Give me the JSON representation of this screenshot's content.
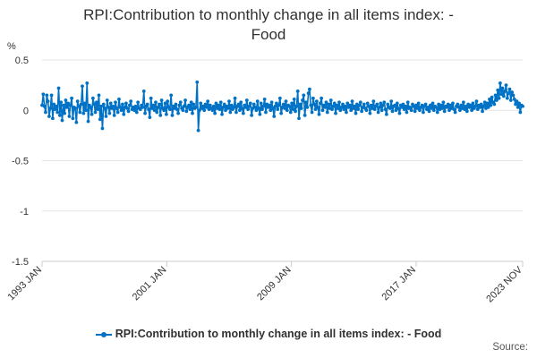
{
  "header": {
    "title_line1": "RPI:Contribution to monthly change in all items index: -",
    "title_line2": "Food"
  },
  "source_label": "Source:",
  "colors": {
    "series": "#0072c6",
    "grid": "#e5e5e5",
    "axis": "#cccccc",
    "text": "#323132"
  },
  "chart_data": {
    "type": "line",
    "title": "RPI:Contribution to monthly change in all items index: - Food",
    "unit_label": "%",
    "ylim": [
      -1.5,
      0.5
    ],
    "yticks": [
      0.5,
      0,
      -0.5,
      -1,
      -1.5
    ],
    "ytick_labels": [
      "0.5",
      "0",
      "-0.5",
      "-1",
      "-1.5"
    ],
    "xlim": [
      "1993 JAN",
      "2023 NOV"
    ],
    "xticks": [
      "1993 JAN",
      "2001 JAN",
      "2009 JAN",
      "2017 JAN",
      "2023 NOV"
    ],
    "grid": true,
    "legend_position": "bottom",
    "series": [
      {
        "name": "RPI:Contribution to monthly change in all items index: - Food",
        "x_start": "1993 JAN",
        "x_end": "2023 NOV",
        "values": [
          0.05,
          0.16,
          0.04,
          -0.02,
          0.15,
          0.09,
          -0.06,
          0.02,
          0.15,
          -0.08,
          0.06,
          0.01,
          0.04,
          -0.02,
          0.22,
          -0.05,
          0.08,
          -0.1,
          0.05,
          -0.03,
          0.1,
          0.03,
          0.07,
          -0.06,
          0.05,
          0.12,
          -0.08,
          0.03,
          0.02,
          -0.12,
          0.09,
          0.04,
          -0.02,
          0.06,
          0.24,
          -0.03,
          0.07,
          0.0,
          0.27,
          -0.11,
          0.05,
          0.03,
          -0.04,
          0.12,
          0.06,
          -0.02,
          0.08,
          0.01,
          0.15,
          -0.09,
          0.04,
          -0.18,
          0.06,
          0.02,
          -0.06,
          0.1,
          0.03,
          -0.03,
          0.07,
          0.02,
          0.04,
          -0.05,
          0.08,
          0.02,
          -0.02,
          0.11,
          0.03,
          0.0,
          0.06,
          -0.04,
          0.03,
          0.07,
          0.02,
          -0.01,
          0.05,
          0.09,
          0.01,
          0.03,
          0.0,
          0.04,
          -0.02,
          0.08,
          0.02,
          0.01,
          0.05,
          0.03,
          0.19,
          -0.03,
          0.04,
          0.06,
          0.01,
          -0.07,
          0.12,
          0.02,
          0.05,
          0.0,
          0.08,
          -0.02,
          0.03,
          0.06,
          -0.05,
          0.1,
          0.02,
          0.0,
          0.07,
          -0.04,
          0.09,
          0.03,
          0.01,
          0.15,
          -0.05,
          0.04,
          0.02,
          0.06,
          0.01,
          -0.03,
          0.05,
          0.08,
          0.02,
          0.0,
          0.04,
          0.1,
          -0.01,
          0.03,
          0.05,
          0.01,
          0.08,
          -0.03,
          0.06,
          0.02,
          0.03,
          0.28,
          -0.2,
          0.0,
          0.07,
          0.02,
          0.04,
          0.0,
          0.06,
          0.03,
          0.09,
          0.01,
          0.05,
          0.02,
          0.0,
          0.04,
          -0.03,
          0.07,
          0.02,
          0.05,
          0.01,
          0.08,
          -0.04,
          0.03,
          0.06,
          0.0,
          0.04,
          0.02,
          0.09,
          -0.02,
          0.05,
          0.01,
          0.03,
          0.12,
          -0.02,
          0.04,
          0.06,
          0.0,
          0.08,
          0.02,
          -0.03,
          0.05,
          0.03,
          0.1,
          0.01,
          0.04,
          0.07,
          -0.05,
          0.02,
          0.06,
          0.03,
          0.0,
          0.09,
          0.02,
          -0.04,
          0.07,
          0.01,
          0.04,
          0.11,
          -0.02,
          0.06,
          0.03,
          0.05,
          0.0,
          0.08,
          0.02,
          -0.06,
          0.04,
          0.07,
          0.01,
          0.05,
          0.12,
          -0.03,
          0.03,
          0.06,
          0.02,
          0.09,
          0.0,
          0.05,
          0.04,
          -0.02,
          0.07,
          0.01,
          0.11,
          -0.01,
          0.04,
          0.19,
          -0.08,
          0.06,
          0.02,
          0.1,
          0.15,
          -0.05,
          0.08,
          0.03,
          0.17,
          0.21,
          0.05,
          -0.02,
          0.12,
          0.06,
          0.01,
          0.09,
          0.03,
          -0.04,
          0.07,
          0.12,
          0.0,
          0.05,
          0.03,
          0.08,
          -0.02,
          0.06,
          0.02,
          0.1,
          0.01,
          0.04,
          0.07,
          -0.03,
          0.05,
          0.02,
          0.08,
          0.0,
          0.03,
          0.06,
          0.01,
          0.04,
          -0.02,
          0.07,
          0.03,
          0.05,
          0.0,
          0.09,
          0.02,
          0.04,
          -0.03,
          0.06,
          0.01,
          0.05,
          0.08,
          -0.01,
          0.03,
          0.06,
          0.02,
          0.0,
          0.07,
          0.04,
          -0.03,
          0.05,
          0.02,
          0.09,
          0.01,
          0.04,
          0.06,
          -0.02,
          0.03,
          0.07,
          0.0,
          0.05,
          0.08,
          0.01,
          -0.04,
          0.06,
          0.03,
          0.02,
          0.09,
          -0.01,
          0.04,
          0.05,
          0.0,
          0.07,
          0.02,
          -0.03,
          0.05,
          0.03,
          0.06,
          0.01,
          0.04,
          -0.02,
          0.08,
          0.02,
          0.03,
          0.0,
          0.06,
          0.04,
          -0.01,
          0.05,
          0.02,
          0.07,
          0.0,
          0.03,
          0.05,
          -0.02,
          0.04,
          0.06,
          0.01,
          0.03,
          -0.01,
          0.05,
          0.02,
          0.07,
          0.0,
          0.04,
          0.03,
          -0.02,
          0.06,
          0.01,
          0.05,
          0.02,
          0.08,
          -0.01,
          0.04,
          0.03,
          0.06,
          0.0,
          0.05,
          0.02,
          0.07,
          0.01,
          -0.02,
          0.04,
          0.06,
          0.03,
          0.0,
          0.05,
          0.02,
          0.08,
          0.01,
          0.04,
          -0.01,
          0.06,
          0.03,
          0.05,
          0.0,
          0.07,
          0.02,
          0.04,
          0.09,
          0.01,
          0.05,
          0.03,
          0.06,
          -0.01,
          0.04,
          0.08,
          0.02,
          0.07,
          0.03,
          0.11,
          0.05,
          0.13,
          0.08,
          0.06,
          0.15,
          0.1,
          0.2,
          0.12,
          0.27,
          0.16,
          0.22,
          0.14,
          0.19,
          0.25,
          0.12,
          0.17,
          0.21,
          0.1,
          0.18,
          0.15,
          0.11,
          0.06,
          0.09,
          0.03,
          0.07,
          -0.02,
          0.05,
          0.04
        ]
      }
    ]
  }
}
